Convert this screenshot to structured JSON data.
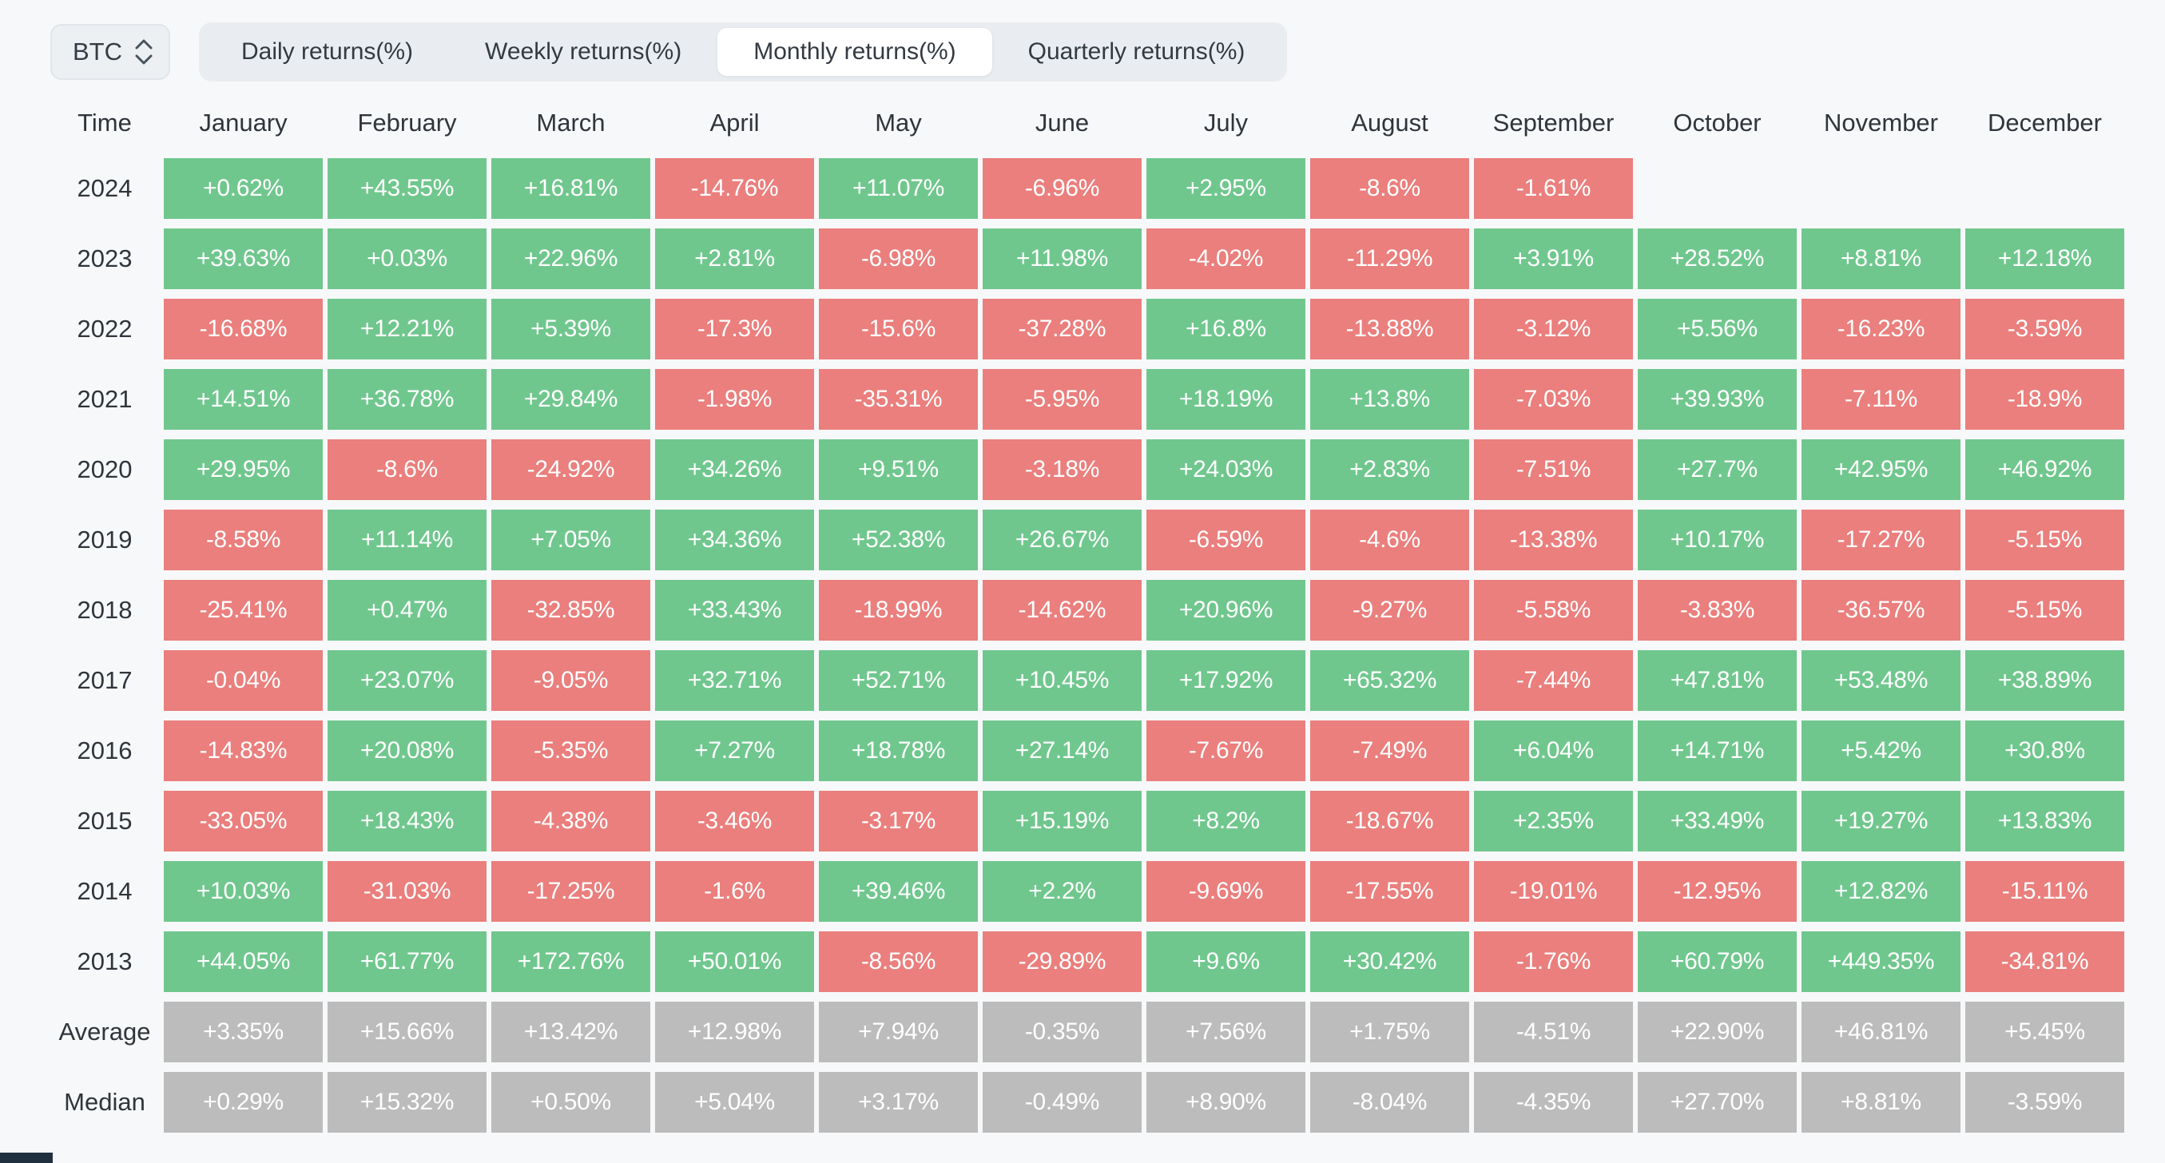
{
  "toolbar": {
    "symbol": "BTC",
    "tabs": [
      {
        "label": "Daily returns(%)",
        "active": false
      },
      {
        "label": "Weekly returns(%)",
        "active": false
      },
      {
        "label": "Monthly returns(%)",
        "active": true
      },
      {
        "label": "Quarterly returns(%)",
        "active": false
      }
    ]
  },
  "table": {
    "corner_label": "Time",
    "months": [
      "January",
      "February",
      "March",
      "April",
      "May",
      "June",
      "July",
      "August",
      "September",
      "October",
      "November",
      "December"
    ],
    "rows": [
      {
        "label": "2024",
        "type": "year",
        "values": [
          "+0.62%",
          "+43.55%",
          "+16.81%",
          "-14.76%",
          "+11.07%",
          "-6.96%",
          "+2.95%",
          "-8.6%",
          "-1.61%",
          "",
          "",
          ""
        ]
      },
      {
        "label": "2023",
        "type": "year",
        "values": [
          "+39.63%",
          "+0.03%",
          "+22.96%",
          "+2.81%",
          "-6.98%",
          "+11.98%",
          "-4.02%",
          "-11.29%",
          "+3.91%",
          "+28.52%",
          "+8.81%",
          "+12.18%"
        ]
      },
      {
        "label": "2022",
        "type": "year",
        "values": [
          "-16.68%",
          "+12.21%",
          "+5.39%",
          "-17.3%",
          "-15.6%",
          "-37.28%",
          "+16.8%",
          "-13.88%",
          "-3.12%",
          "+5.56%",
          "-16.23%",
          "-3.59%"
        ]
      },
      {
        "label": "2021",
        "type": "year",
        "values": [
          "+14.51%",
          "+36.78%",
          "+29.84%",
          "-1.98%",
          "-35.31%",
          "-5.95%",
          "+18.19%",
          "+13.8%",
          "-7.03%",
          "+39.93%",
          "-7.11%",
          "-18.9%"
        ]
      },
      {
        "label": "2020",
        "type": "year",
        "values": [
          "+29.95%",
          "-8.6%",
          "-24.92%",
          "+34.26%",
          "+9.51%",
          "-3.18%",
          "+24.03%",
          "+2.83%",
          "-7.51%",
          "+27.7%",
          "+42.95%",
          "+46.92%"
        ]
      },
      {
        "label": "2019",
        "type": "year",
        "values": [
          "-8.58%",
          "+11.14%",
          "+7.05%",
          "+34.36%",
          "+52.38%",
          "+26.67%",
          "-6.59%",
          "-4.6%",
          "-13.38%",
          "+10.17%",
          "-17.27%",
          "-5.15%"
        ]
      },
      {
        "label": "2018",
        "type": "year",
        "values": [
          "-25.41%",
          "+0.47%",
          "-32.85%",
          "+33.43%",
          "-18.99%",
          "-14.62%",
          "+20.96%",
          "-9.27%",
          "-5.58%",
          "-3.83%",
          "-36.57%",
          "-5.15%"
        ]
      },
      {
        "label": "2017",
        "type": "year",
        "values": [
          "-0.04%",
          "+23.07%",
          "-9.05%",
          "+32.71%",
          "+52.71%",
          "+10.45%",
          "+17.92%",
          "+65.32%",
          "-7.44%",
          "+47.81%",
          "+53.48%",
          "+38.89%"
        ]
      },
      {
        "label": "2016",
        "type": "year",
        "values": [
          "-14.83%",
          "+20.08%",
          "-5.35%",
          "+7.27%",
          "+18.78%",
          "+27.14%",
          "-7.67%",
          "-7.49%",
          "+6.04%",
          "+14.71%",
          "+5.42%",
          "+30.8%"
        ]
      },
      {
        "label": "2015",
        "type": "year",
        "values": [
          "-33.05%",
          "+18.43%",
          "-4.38%",
          "-3.46%",
          "-3.17%",
          "+15.19%",
          "+8.2%",
          "-18.67%",
          "+2.35%",
          "+33.49%",
          "+19.27%",
          "+13.83%"
        ]
      },
      {
        "label": "2014",
        "type": "year",
        "values": [
          "+10.03%",
          "-31.03%",
          "-17.25%",
          "-1.6%",
          "+39.46%",
          "+2.2%",
          "-9.69%",
          "-17.55%",
          "-19.01%",
          "-12.95%",
          "+12.82%",
          "-15.11%"
        ]
      },
      {
        "label": "2013",
        "type": "year",
        "values": [
          "+44.05%",
          "+61.77%",
          "+172.76%",
          "+50.01%",
          "-8.56%",
          "-29.89%",
          "+9.6%",
          "+30.42%",
          "-1.76%",
          "+60.79%",
          "+449.35%",
          "-34.81%"
        ]
      },
      {
        "label": "Average",
        "type": "summary",
        "values": [
          "+3.35%",
          "+15.66%",
          "+13.42%",
          "+12.98%",
          "+7.94%",
          "-0.35%",
          "+7.56%",
          "+1.75%",
          "-4.51%",
          "+22.90%",
          "+46.81%",
          "+5.45%"
        ]
      },
      {
        "label": "Median",
        "type": "summary",
        "values": [
          "+0.29%",
          "+15.32%",
          "+0.50%",
          "+5.04%",
          "+3.17%",
          "-0.49%",
          "+8.90%",
          "-8.04%",
          "-4.35%",
          "+27.70%",
          "+8.81%",
          "-3.59%"
        ]
      }
    ]
  },
  "colors": {
    "positive": "#70c78e",
    "negative": "#ea7f7d",
    "summary": "#bcbcbc",
    "edge_bar": "#20303f"
  }
}
